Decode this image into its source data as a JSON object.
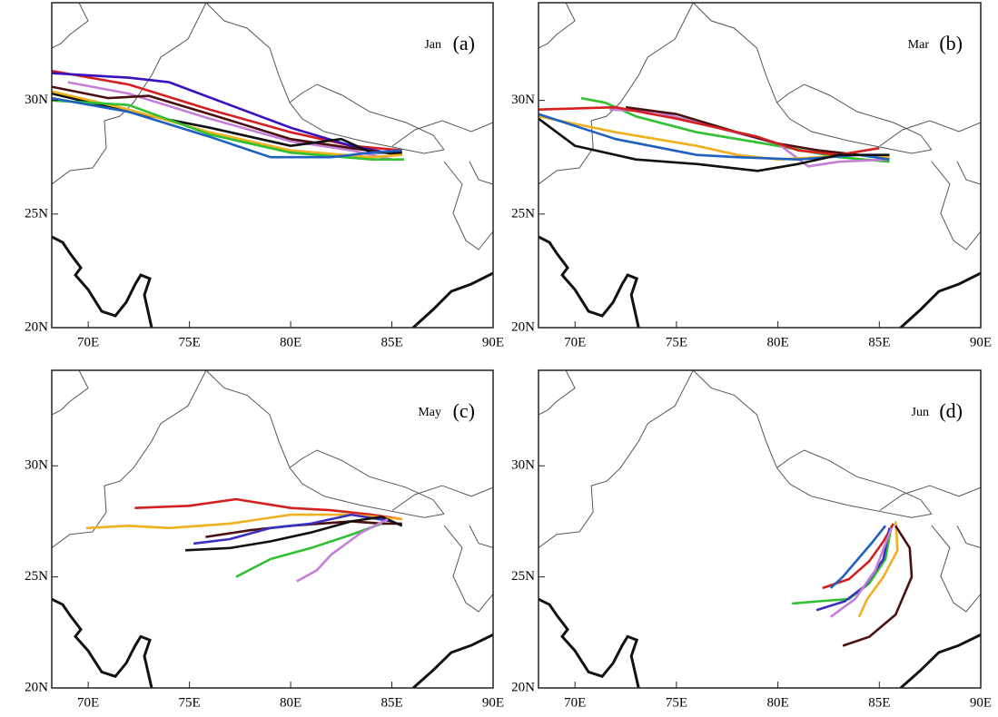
{
  "chart_data": [
    {
      "type": "line",
      "annotation": "Jan",
      "label": "(a)",
      "xlim": [
        68.2,
        90
      ],
      "ylim": [
        20,
        34.3
      ],
      "xticks": [
        {
          "value": 70,
          "label": "70E"
        },
        {
          "value": 75,
          "label": "75E"
        },
        {
          "value": 80,
          "label": "80E"
        },
        {
          "value": 85,
          "label": "85E"
        },
        {
          "value": 90,
          "label": "90E"
        }
      ],
      "yticks": [
        {
          "value": 20,
          "label": "20N"
        },
        {
          "value": 25,
          "label": "25N"
        },
        {
          "value": 30,
          "label": "30N"
        }
      ],
      "series": [
        {
          "color": "#d42020",
          "x": [
            68.2,
            72,
            76,
            80,
            83,
            85.5
          ],
          "values": [
            31.3,
            30.7,
            29.6,
            28.6,
            28.0,
            27.8
          ]
        },
        {
          "color": "#3a10c0",
          "x": [
            68.2,
            72,
            74,
            77,
            80,
            83,
            85.3
          ],
          "values": [
            31.2,
            31.0,
            30.8,
            29.8,
            28.8,
            28.0,
            27.6
          ]
        },
        {
          "color": "#c47fd6",
          "x": [
            69,
            72,
            76,
            80,
            83,
            85
          ],
          "values": [
            30.8,
            30.3,
            29.2,
            28.2,
            27.8,
            27.4
          ]
        },
        {
          "color": "#4a1010",
          "x": [
            68.2,
            71,
            73,
            76,
            80,
            83,
            85.5
          ],
          "values": [
            30.6,
            30.1,
            30.2,
            29.4,
            28.3,
            27.9,
            27.6
          ]
        },
        {
          "color": "#111111",
          "x": [
            68.2,
            72,
            76,
            80,
            82.5,
            84,
            85.5
          ],
          "values": [
            30.3,
            29.5,
            28.8,
            28.0,
            28.3,
            27.7,
            27.7
          ]
        },
        {
          "color": "#f0b020",
          "x": [
            68.2,
            72,
            76,
            80,
            84,
            85.5
          ],
          "values": [
            30.4,
            29.6,
            28.6,
            27.8,
            27.5,
            27.6
          ]
        },
        {
          "color": "#30c030",
          "x": [
            68.2,
            72,
            76,
            80,
            84,
            85.6
          ],
          "values": [
            30.0,
            29.8,
            28.5,
            27.7,
            27.4,
            27.4
          ]
        },
        {
          "color": "#2060c0",
          "x": [
            68.2,
            72,
            76,
            79,
            82,
            84,
            85.5
          ],
          "values": [
            30.1,
            29.5,
            28.4,
            27.5,
            27.5,
            27.7,
            27.8
          ]
        }
      ]
    },
    {
      "type": "line",
      "annotation": "Mar",
      "label": "(b)",
      "xlim": [
        68.2,
        90
      ],
      "ylim": [
        20,
        34.3
      ],
      "xticks": [
        {
          "value": 70,
          "label": "70E"
        },
        {
          "value": 75,
          "label": "75E"
        },
        {
          "value": 80,
          "label": "80E"
        },
        {
          "value": 85,
          "label": "85E"
        },
        {
          "value": 90,
          "label": "90E"
        }
      ],
      "yticks": [
        {
          "value": 20,
          "label": "20N"
        },
        {
          "value": 25,
          "label": "25N"
        },
        {
          "value": 30,
          "label": "30N"
        }
      ],
      "series": [
        {
          "color": "#30c030",
          "x": [
            70.3,
            71.5,
            73,
            76,
            80,
            83,
            85.5
          ],
          "values": [
            30.1,
            29.9,
            29.3,
            28.6,
            28.0,
            27.5,
            27.3
          ]
        },
        {
          "color": "#c47fd6",
          "x": [
            71.7,
            74,
            77,
            80,
            81.5,
            83,
            85.5
          ],
          "values": [
            29.6,
            29.5,
            28.8,
            28.1,
            27.1,
            27.3,
            27.4
          ]
        },
        {
          "color": "#4a1010",
          "x": [
            72.5,
            75,
            78,
            80,
            82,
            84,
            85.5
          ],
          "values": [
            29.7,
            29.4,
            28.6,
            28.1,
            27.8,
            27.6,
            27.5
          ]
        },
        {
          "color": "#d42020",
          "x": [
            68.2,
            72,
            75,
            79,
            81,
            83,
            85
          ],
          "values": [
            29.6,
            29.7,
            29.2,
            28.4,
            27.8,
            27.6,
            27.9
          ]
        },
        {
          "color": "#f0b020",
          "x": [
            68.2,
            72,
            76,
            78,
            80,
            84,
            85.5
          ],
          "values": [
            29.3,
            28.6,
            28.0,
            27.6,
            27.4,
            27.6,
            27.5
          ]
        },
        {
          "color": "#2060c0",
          "x": [
            68.2,
            72,
            76,
            78,
            81,
            84,
            85.5
          ],
          "values": [
            29.4,
            28.3,
            27.6,
            27.5,
            27.4,
            27.6,
            27.4
          ]
        },
        {
          "color": "#111111",
          "x": [
            68.2,
            70,
            73,
            76,
            79,
            81,
            83,
            85.5
          ],
          "values": [
            29.2,
            28.0,
            27.4,
            27.2,
            26.9,
            27.2,
            27.6,
            27.6
          ]
        }
      ]
    },
    {
      "type": "line",
      "annotation": "May",
      "label": "(c)",
      "xlim": [
        68.2,
        90
      ],
      "ylim": [
        20,
        34.3
      ],
      "xticks": [
        {
          "value": 70,
          "label": "70E"
        },
        {
          "value": 75,
          "label": "75E"
        },
        {
          "value": 80,
          "label": "80E"
        },
        {
          "value": 85,
          "label": "85E"
        },
        {
          "value": 90,
          "label": "90E"
        }
      ],
      "yticks": [
        {
          "value": 20,
          "label": "20N"
        },
        {
          "value": 25,
          "label": "25N"
        },
        {
          "value": 30,
          "label": "30N"
        }
      ],
      "series": [
        {
          "color": "#d42020",
          "x": [
            72.3,
            75,
            77.3,
            80,
            82,
            84,
            85.5
          ],
          "values": [
            28.1,
            28.2,
            28.5,
            28.1,
            28.0,
            27.8,
            27.6
          ]
        },
        {
          "color": "#f0b020",
          "x": [
            69.9,
            72,
            74,
            77,
            80,
            83,
            85.5
          ],
          "values": [
            27.2,
            27.3,
            27.2,
            27.4,
            27.8,
            27.8,
            27.6
          ]
        },
        {
          "color": "#4a1010",
          "x": [
            75.8,
            78,
            80,
            83,
            84.5,
            85.5
          ],
          "values": [
            26.8,
            27.1,
            27.3,
            27.5,
            27.4,
            27.4
          ]
        },
        {
          "color": "#3a30c0",
          "x": [
            75.2,
            77,
            79,
            81,
            83,
            85
          ],
          "values": [
            26.5,
            26.7,
            27.2,
            27.4,
            27.8,
            27.5
          ]
        },
        {
          "color": "#111111",
          "x": [
            74.8,
            77,
            79,
            81,
            83,
            84.5,
            85.5
          ],
          "values": [
            26.2,
            26.3,
            26.6,
            27.0,
            27.5,
            27.7,
            27.3
          ]
        },
        {
          "color": "#30c030",
          "x": [
            77.3,
            79,
            81,
            83,
            84.5
          ],
          "values": [
            25.0,
            25.8,
            26.3,
            26.9,
            27.4
          ]
        },
        {
          "color": "#c47fd6",
          "x": [
            80.3,
            81.3,
            82,
            83.5,
            84.8
          ],
          "values": [
            24.8,
            25.3,
            26.0,
            27.0,
            27.6
          ]
        }
      ]
    },
    {
      "type": "line",
      "annotation": "Jun",
      "label": "(d)",
      "xlim": [
        68.2,
        90
      ],
      "ylim": [
        20,
        34.3
      ],
      "xticks": [
        {
          "value": 70,
          "label": "70E"
        },
        {
          "value": 75,
          "label": "75E"
        },
        {
          "value": 80,
          "label": "80E"
        },
        {
          "value": 85,
          "label": "85E"
        },
        {
          "value": 90,
          "label": "90E"
        }
      ],
      "yticks": [
        {
          "value": 20,
          "label": "20N"
        },
        {
          "value": 25,
          "label": "25N"
        },
        {
          "value": 30,
          "label": "30N"
        }
      ],
      "series": [
        {
          "color": "#30c030",
          "x": [
            80.7,
            82,
            83.5,
            84.5,
            85.3,
            85.6
          ],
          "values": [
            23.8,
            23.9,
            24.0,
            24.7,
            25.8,
            27.3
          ]
        },
        {
          "color": "#d42020",
          "x": [
            82.2,
            83.5,
            84.5,
            85.2,
            85.7
          ],
          "values": [
            24.5,
            24.9,
            25.7,
            26.6,
            27.4
          ]
        },
        {
          "color": "#3a30c0",
          "x": [
            81.9,
            83.3,
            84.3,
            85.2,
            85.5
          ],
          "values": [
            23.5,
            23.9,
            24.6,
            25.8,
            27.2
          ]
        },
        {
          "color": "#2060c0",
          "x": [
            82.6,
            83.2,
            84.6,
            85.3
          ],
          "values": [
            24.5,
            25.0,
            26.5,
            27.3
          ]
        },
        {
          "color": "#c47fd6",
          "x": [
            82.6,
            83.8,
            84.8,
            85.6
          ],
          "values": [
            23.2,
            24.0,
            25.3,
            27.2
          ]
        },
        {
          "color": "#f0b020",
          "x": [
            84.0,
            84.4,
            85.2,
            85.9,
            85.8
          ],
          "values": [
            23.2,
            24.0,
            25.0,
            26.2,
            27.5
          ]
        },
        {
          "color": "#4a1010",
          "x": [
            83.2,
            84.5,
            85.8,
            86.6,
            86.5,
            85.8
          ],
          "values": [
            21.9,
            22.3,
            23.3,
            25.0,
            26.3,
            27.3
          ]
        }
      ]
    }
  ]
}
